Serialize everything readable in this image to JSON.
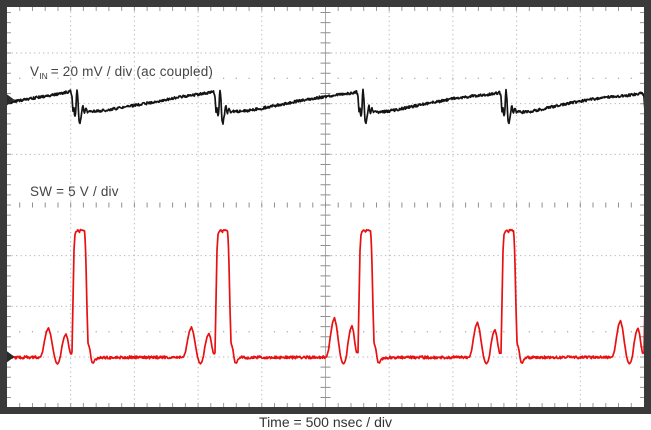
{
  "scope": {
    "labels": {
      "ch1": {
        "prefix": "V",
        "sub": "IN",
        "rest": "= 20 mV / div (ac coupled)"
      },
      "ch2": "SW = 5 V / div"
    },
    "caption": "Time = 500 nsec / div"
  },
  "chart_data": {
    "type": "line",
    "title": "",
    "x_axis": {
      "label": "Time = 500 nsec / div",
      "divisions": 10,
      "ns_per_division": 500,
      "range_ns": [
        0,
        5000
      ]
    },
    "y_axis": {
      "divisions": 8,
      "minor_ticks_per_division": 5
    },
    "graticule": {
      "h_divisions": 10,
      "v_divisions": 8,
      "dotted_division_lines": true,
      "center_crosshair_minor_ticks": true,
      "edge_minor_ticks": true,
      "reference_dot_rows_divisions_from_center": [
        2.5,
        -2.5
      ]
    },
    "period_ns": 1122.5,
    "switching_frequency_kHz": 891,
    "series": [
      {
        "name": "VIN",
        "label": "VIN = 20 mV / div (ac coupled)",
        "color": "#141414",
        "units": "mV",
        "per_division": 20,
        "coupling": "ac",
        "zero_divisions_above_bottom": 6.06,
        "event_times_ns": [
          505,
          1627.5,
          2750,
          3872.5,
          4995
        ],
        "ripple_pp_mV": 13,
        "noise_mV": 0.5,
        "template_phase_mV": [
          [
            0,
            2.4
          ],
          [
            6,
            1.0
          ],
          [
            12,
            -4.8
          ],
          [
            20,
            -2.8
          ],
          [
            27,
            -6.8
          ],
          [
            35,
            -4.6
          ],
          [
            43,
            4.6
          ],
          [
            51,
            1.0
          ],
          [
            59,
            -7.8
          ],
          [
            67,
            -9.6
          ],
          [
            78,
            -6.2
          ],
          [
            90,
            -1.8
          ],
          [
            102,
            -5.6
          ],
          [
            114,
            -3.0
          ],
          [
            126,
            -5.0
          ],
          [
            141,
            -4.6
          ],
          [
            235,
            -4.2
          ],
          [
            471,
            -2.0
          ],
          [
            785,
            0.4
          ],
          [
            1020,
            2.0
          ],
          [
            1099,
            2.8
          ],
          [
            1114,
            3.2
          ]
        ]
      },
      {
        "name": "SW",
        "label": "SW = 5 V / div",
        "color": "#e81010",
        "units": "V",
        "per_division": 5,
        "zero_divisions_above_bottom": 0.99,
        "pulse_rise_times_ns": [
          510,
          1632.5,
          2755,
          3877.5,
          5000
        ],
        "pulse_amplitude_V": 12.5,
        "pulse_top_width_ns": 80,
        "pre_pulse_ring_peaks_V": [
          3.6,
          2.85
        ],
        "hump_scale_per_cycle": [
          0.8,
          0.82,
          1.08,
          0.95,
          1.0
        ],
        "noise_V": 0.14,
        "template_phase_V": [
          [
            0,
            0.35
          ],
          [
            8,
            5.5
          ],
          [
            16,
            10.6
          ],
          [
            24,
            12.1
          ],
          [
            35,
            12.4
          ],
          [
            47,
            12.5
          ],
          [
            59,
            12.3
          ],
          [
            67,
            12.55
          ],
          [
            86,
            12.5
          ],
          [
            100,
            12.4
          ],
          [
            108,
            10.2
          ],
          [
            118,
            4.7
          ],
          [
            126,
            1.3
          ],
          [
            134,
            1.05
          ],
          [
            141,
            0.7
          ],
          [
            149,
            -0.05
          ],
          [
            157,
            -0.55
          ],
          [
            169,
            -0.6
          ],
          [
            181,
            -0.25
          ],
          [
            205,
            -0.08
          ],
          [
            400,
            -0.05
          ],
          [
            700,
            -0.06
          ],
          [
            860,
            -0.04
          ],
          [
            876,
            0
          ],
          [
            891,
            0.6
          ],
          [
            906,
            1.9
          ],
          [
            922,
            3.1
          ],
          [
            938,
            3.6
          ],
          [
            954,
            2.8
          ],
          [
            969,
            1.4
          ],
          [
            985,
            0.05
          ],
          [
            997,
            -0.5
          ],
          [
            1008,
            -0.7
          ],
          [
            1020,
            -0.5
          ],
          [
            1032,
            0.1
          ],
          [
            1044,
            1.3
          ],
          [
            1060,
            2.4
          ],
          [
            1075,
            2.85
          ],
          [
            1087,
            2.3
          ],
          [
            1099,
            1.2
          ],
          [
            1110,
            0.4
          ]
        ]
      }
    ]
  }
}
